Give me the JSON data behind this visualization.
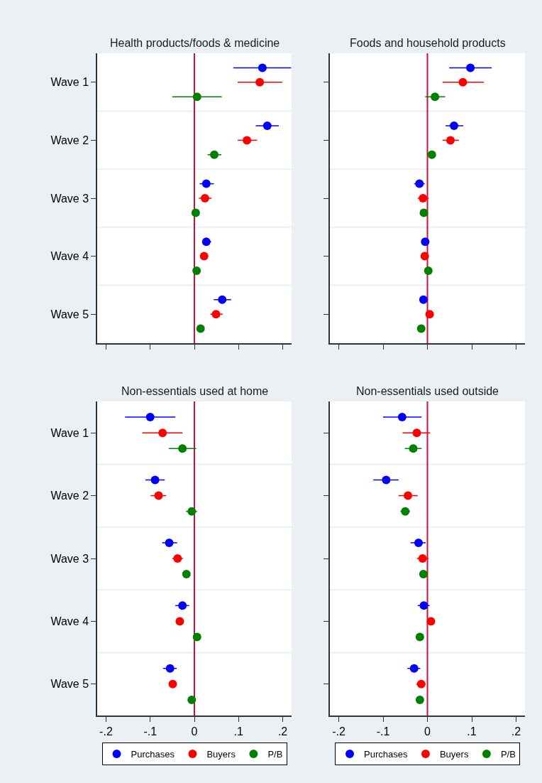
{
  "chart_data": [
    {
      "type": "scatter",
      "orientation": "horizontal",
      "title": "Health products/foods & medicine",
      "categories": [
        "Wave 1",
        "Wave 2",
        "Wave 3",
        "Wave 4",
        "Wave 5"
      ],
      "marker": "circle",
      "grid": true,
      "legend": false,
      "tick_labels": "y",
      "xlim": [
        -0.22,
        0.22
      ],
      "xticks": [
        {
          "value": -0.2,
          "label": null
        },
        {
          "value": -0.1,
          "label": null
        },
        {
          "value": 0,
          "label": null
        },
        {
          "value": 0.1,
          "label": null
        },
        {
          "value": 0.2,
          "label": null
        }
      ],
      "ref_lines": [
        {
          "axis": "x",
          "value": 0,
          "color": "#d0103a"
        }
      ],
      "series": [
        {
          "color": "#0000ff",
          "values": [
            0.154,
            0.165,
            0.027,
            0.027,
            0.063
          ],
          "errors": [
            [
              0.088,
              0.219
            ],
            [
              0.139,
              0.191
            ],
            [
              0.012,
              0.044
            ],
            [
              0.018,
              0.038
            ],
            [
              0.044,
              0.083
            ]
          ]
        },
        {
          "color": "#ff0000",
          "values": [
            0.148,
            0.119,
            0.024,
            0.022,
            0.049
          ],
          "errors": [
            [
              0.098,
              0.199
            ],
            [
              0.098,
              0.142
            ],
            [
              0.01,
              0.039
            ],
            null,
            [
              0.036,
              0.064
            ]
          ]
        },
        {
          "color": "#008000",
          "values": [
            0.006,
            0.045,
            0.003,
            0.005,
            0.014
          ],
          "errors": [
            [
              -0.05,
              0.062
            ],
            [
              0.03,
              0.061
            ],
            null,
            null,
            null
          ]
        }
      ]
    },
    {
      "type": "scatter",
      "orientation": "horizontal",
      "title": "Foods and household products",
      "categories": [
        null,
        null,
        null,
        null,
        null
      ],
      "marker": "circle",
      "grid": true,
      "legend": false,
      "tick_labels": false,
      "xlim": [
        -0.22,
        0.22
      ],
      "xticks": [
        {
          "value": -0.2,
          "label": null
        },
        {
          "value": -0.1,
          "label": null
        },
        {
          "value": 0,
          "label": null
        },
        {
          "value": 0.1,
          "label": null
        },
        {
          "value": 0.2,
          "label": null
        }
      ],
      "ref_lines": [
        {
          "axis": "x",
          "value": 0,
          "color": "#d0103a"
        }
      ],
      "series": [
        {
          "color": "#0000ff",
          "values": [
            0.097,
            0.06,
            -0.018,
            -0.005,
            -0.009
          ],
          "errors": [
            [
              0.049,
              0.145
            ],
            [
              0.041,
              0.081
            ],
            [
              -0.03,
              -0.006
            ],
            null,
            null
          ]
        },
        {
          "color": "#ff0000",
          "values": [
            0.08,
            0.052,
            -0.01,
            -0.006,
            0.005
          ],
          "errors": [
            [
              0.034,
              0.127
            ],
            [
              0.034,
              0.071
            ],
            [
              -0.022,
              0.003
            ],
            null,
            null
          ]
        },
        {
          "color": "#008000",
          "values": [
            0.017,
            0.01,
            -0.008,
            0.002,
            -0.014
          ],
          "errors": [
            [
              -0.005,
              0.04
            ],
            null,
            null,
            null,
            null
          ]
        }
      ]
    },
    {
      "type": "scatter",
      "orientation": "horizontal",
      "title": "Non-essentials used at home",
      "categories": [
        "Wave 1",
        "Wave 2",
        "Wave 3",
        "Wave 4",
        "Wave 5"
      ],
      "marker": "circle",
      "grid": true,
      "legend": "bottom",
      "xlim": [
        -0.22,
        0.22
      ],
      "xticks": [
        {
          "value": -0.2,
          "label": "-.2"
        },
        {
          "value": -0.1,
          "label": "-.1"
        },
        0,
        {
          "value": 0.1,
          "label": ".1"
        },
        {
          "value": 0.2,
          "label": ".2"
        }
      ],
      "ref_lines": [
        {
          "axis": "x",
          "value": 0,
          "color": "#d0103a"
        }
      ],
      "series": [
        {
          "name": "Purchases",
          "color": "#0000ff",
          "values": [
            -0.1,
            -0.089,
            -0.057,
            -0.027,
            -0.055
          ],
          "errors": [
            [
              -0.157,
              -0.043
            ],
            [
              -0.111,
              -0.067
            ],
            [
              -0.073,
              -0.039
            ],
            [
              -0.043,
              -0.012
            ],
            [
              -0.071,
              -0.04
            ]
          ]
        },
        {
          "name": "Buyers",
          "color": "#ff0000",
          "values": [
            -0.072,
            -0.081,
            -0.038,
            -0.033,
            -0.049
          ],
          "errors": [
            [
              -0.118,
              -0.027
            ],
            [
              -0.099,
              -0.064
            ],
            [
              -0.05,
              -0.026
            ],
            null,
            null
          ]
        },
        {
          "name": "P/B",
          "color": "#008000",
          "values": [
            -0.027,
            -0.006,
            -0.018,
            0.006,
            -0.006
          ],
          "errors": [
            [
              -0.058,
              0.004
            ],
            [
              -0.019,
              0.006
            ],
            null,
            null,
            null
          ]
        }
      ]
    },
    {
      "type": "scatter",
      "orientation": "horizontal",
      "title": "Non-essentials used outside",
      "categories": [
        null,
        null,
        null,
        null,
        null
      ],
      "marker": "circle",
      "grid": true,
      "legend": "bottom",
      "tick_labels": "x",
      "xlim": [
        -0.22,
        0.22
      ],
      "xticks": [
        {
          "value": -0.2,
          "label": "-.2"
        },
        {
          "value": -0.1,
          "label": "-.1"
        },
        0,
        {
          "value": 0.1,
          "label": ".1"
        },
        {
          "value": 0.2,
          "label": ".2"
        }
      ],
      "ref_lines": [
        {
          "axis": "x",
          "value": 0,
          "color": "#d0103a"
        }
      ],
      "series": [
        {
          "name": "Purchases",
          "color": "#0000ff",
          "values": [
            -0.057,
            -0.093,
            -0.02,
            -0.008,
            -0.03
          ],
          "errors": [
            [
              -0.1,
              -0.013
            ],
            [
              -0.122,
              -0.065
            ],
            [
              -0.038,
              -0.004
            ],
            [
              -0.022,
              0.005
            ],
            [
              -0.045,
              -0.016
            ]
          ]
        },
        {
          "name": "Buyers",
          "color": "#ff0000",
          "values": [
            -0.024,
            -0.044,
            -0.011,
            0.008,
            -0.014
          ],
          "errors": [
            [
              -0.056,
              0.006
            ],
            [
              -0.065,
              -0.022
            ],
            [
              -0.024,
              0.002
            ],
            null,
            [
              -0.025,
              -0.004
            ]
          ]
        },
        {
          "name": "P/B",
          "color": "#008000",
          "values": [
            -0.032,
            -0.05,
            -0.009,
            -0.017,
            -0.017
          ],
          "errors": [
            [
              -0.051,
              -0.013
            ],
            [
              -0.061,
              -0.039
            ],
            null,
            null,
            null
          ]
        }
      ]
    }
  ]
}
